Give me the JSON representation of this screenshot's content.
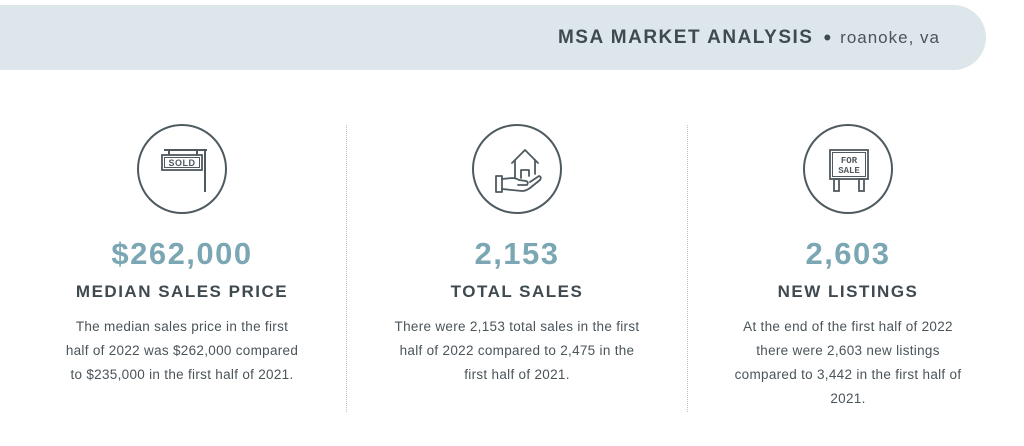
{
  "header": {
    "title": "MSA MARKET ANALYSIS",
    "separator": "•",
    "location": "roanoke, va"
  },
  "colors": {
    "banner_bg": "#dde6ea",
    "accent": "#7aa7b3",
    "text_dark": "#3f4a50"
  },
  "stats": [
    {
      "icon": "sold-sign-icon",
      "icon_text": "SOLD",
      "value": "$262,000",
      "label": "MEDIAN SALES PRICE",
      "description": "The median sales price in the first half of 2022 was $262,000 compared to $235,000 in the first half of 2021."
    },
    {
      "icon": "house-in-hand-icon",
      "value": "2,153",
      "label": "TOTAL SALES",
      "description": "There were 2,153 total sales in the first half of 2022 compared to 2,475 in the first half of 2021."
    },
    {
      "icon": "for-sale-sign-icon",
      "icon_text_1": "FOR",
      "icon_text_2": "SALE",
      "value": "2,603",
      "label": "NEW LISTINGS",
      "description": "At the end of the first half of 2022 there were 2,603 new listings compared to 3,442 in the first half of 2021."
    }
  ]
}
